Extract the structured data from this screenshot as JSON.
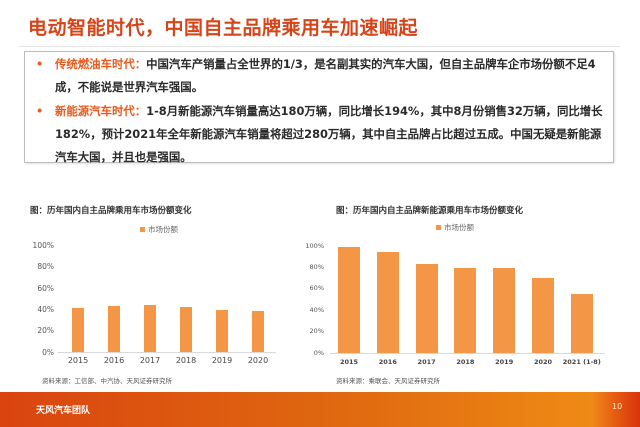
{
  "slide": {
    "title": "电动智能时代，中国自主品牌乘用车加速崛起",
    "bullets": [
      {
        "marker": "•",
        "lead": "传统燃油车时代：",
        "text": "中国汽车产销量占全世界的1/3，是名副其实的汽车大国，但自主品牌车企市场份额不足4成，不能说是世界汽车强国。"
      },
      {
        "marker": "•",
        "lead": "新能源汽车时代：",
        "text": "1-8月新能源汽车销量高达180万辆，同比增长194%，其中8月份销售32万辆，同比增长182%，预计2021年全年新能源汽车销量将超过280万辆，其中自主品牌占比超过五成。中国无疑是新能源汽车大国，并且也是强国。"
      }
    ],
    "footer": {
      "team": "天风汽车团队",
      "page": "10"
    },
    "colors": {
      "accent": "#d6451a",
      "bar": "#f39645",
      "footer": "#e06a10"
    }
  },
  "charts": {
    "left": {
      "title": "图：历年国内自主品牌乘用车市场份额变化",
      "legend": "市场份额",
      "yticks": [
        "100%",
        "80%",
        "60%",
        "40%",
        "20%",
        "0%"
      ],
      "source": "资料来源：工信部、中汽协、天风证券研究所"
    },
    "right": {
      "title": "图：历年国内自主品牌新能源乘用车市场份额变化",
      "legend": "市场份额",
      "yticks": [
        "100%",
        "80%",
        "60%",
        "40%",
        "20%",
        "0%"
      ],
      "source": "资料来源：乘联会、天风证券研究所"
    }
  },
  "chart_data": [
    {
      "type": "bar",
      "title": "图：历年国内自主品牌乘用车市场份额变化",
      "categories": [
        "2015",
        "2016",
        "2017",
        "2018",
        "2019",
        "2020"
      ],
      "series": [
        {
          "name": "市场份额",
          "values": [
            41,
            43,
            44,
            42,
            39,
            38
          ]
        }
      ],
      "xlabel": "",
      "ylabel": "",
      "ylim": [
        0,
        100
      ],
      "unit": "%",
      "grid": false,
      "legend_position": "top"
    },
    {
      "type": "bar",
      "title": "图：历年国内自主品牌新能源乘用车市场份额变化",
      "categories": [
        "2015",
        "2016",
        "2017",
        "2018",
        "2019",
        "2020",
        "2021 (1-8)"
      ],
      "series": [
        {
          "name": "市场份额",
          "values": [
            99,
            94,
            83,
            79,
            79,
            70,
            55
          ]
        }
      ],
      "xlabel": "",
      "ylabel": "",
      "ylim": [
        0,
        100
      ],
      "unit": "%",
      "grid": false,
      "legend_position": "top"
    }
  ]
}
